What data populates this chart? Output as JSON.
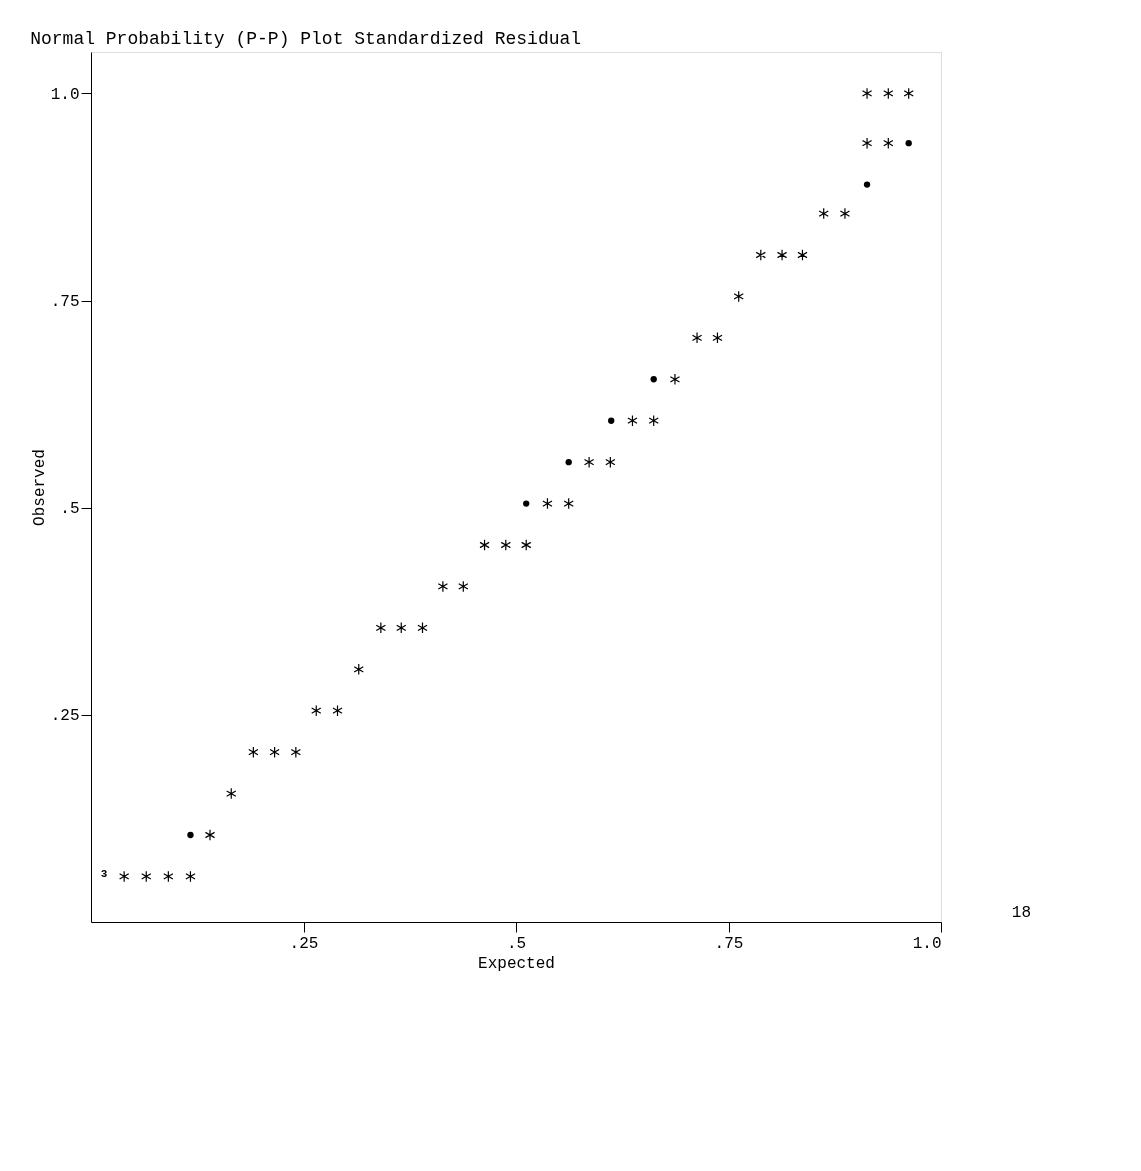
{
  "chart_data": {
    "type": "scatter",
    "title": "Normal Probability (P-P) Plot  Standardized Residual",
    "xlabel": "Expected",
    "ylabel": "Observed",
    "xlim": [
      0,
      1
    ],
    "ylim": [
      0,
      1.05
    ],
    "xticks": [
      {
        "value": 0.25,
        "label": ".25"
      },
      {
        "value": 0.5,
        "label": ".5"
      },
      {
        "value": 0.75,
        "label": ".75"
      },
      {
        "value": 1.0,
        "label": "1.0"
      }
    ],
    "yticks": [
      {
        "value": 0.25,
        "label": ".25"
      },
      {
        "value": 0.5,
        "label": ".5"
      },
      {
        "value": 0.75,
        "label": ".75"
      },
      {
        "value": 1.0,
        "label": "1.0"
      }
    ],
    "grid": false,
    "series": [
      {
        "color": "#000000",
        "marker": "cross",
        "x": [
          0.039,
          0.065,
          0.091,
          0.117,
          0.14,
          0.165,
          0.191,
          0.216,
          0.241,
          0.265,
          0.29,
          0.315,
          0.341,
          0.365,
          0.39,
          0.414,
          0.438,
          0.463,
          0.488,
          0.512,
          0.537,
          0.562,
          0.586,
          0.611,
          0.637,
          0.662,
          0.687,
          0.713,
          0.737,
          0.762,
          0.788,
          0.813,
          0.837,
          0.862,
          0.887,
          0.913,
          0.938,
          0.913,
          0.938,
          0.962
        ],
        "values": [
          0.055,
          0.055,
          0.055,
          0.055,
          0.105,
          0.155,
          0.205,
          0.205,
          0.205,
          0.255,
          0.255,
          0.305,
          0.355,
          0.355,
          0.355,
          0.405,
          0.405,
          0.455,
          0.455,
          0.455,
          0.505,
          0.505,
          0.555,
          0.555,
          0.605,
          0.605,
          0.655,
          0.705,
          0.705,
          0.755,
          0.805,
          0.805,
          0.805,
          0.855,
          0.855,
          0.94,
          0.94,
          1.0,
          1.0,
          1.0
        ]
      },
      {
        "color": "#000000",
        "marker": "circle",
        "x": [
          0.117,
          0.512,
          0.562,
          0.612,
          0.662,
          0.913,
          0.962
        ],
        "values": [
          0.105,
          0.505,
          0.555,
          0.605,
          0.655,
          0.89,
          0.94
        ]
      }
    ],
    "annotations": [
      {
        "text": "3",
        "x": 0.039,
        "y": 0.055
      },
      "18"
    ]
  }
}
